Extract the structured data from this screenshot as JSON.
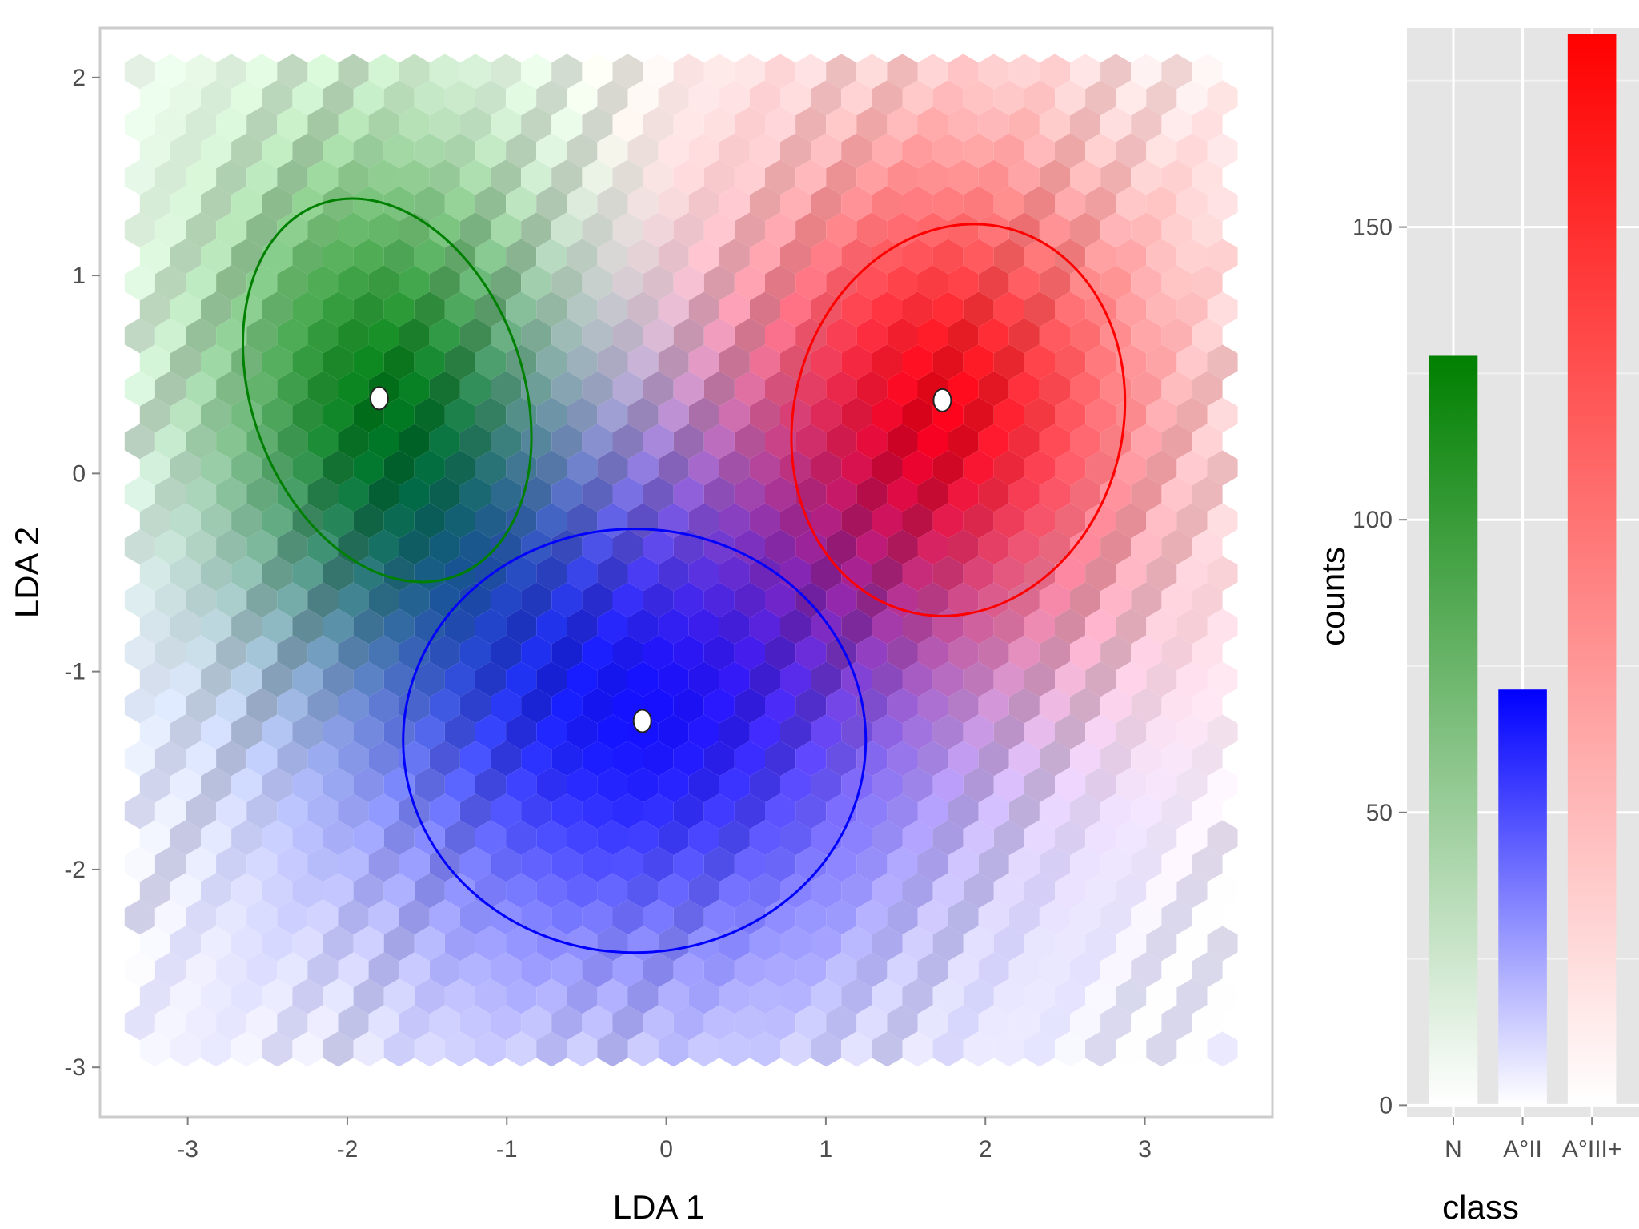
{
  "chart_data": [
    {
      "type": "scatter",
      "subtype": "hexbin-density-with-ellipses",
      "xlabel": "LDA 1",
      "ylabel": "LDA 2",
      "xlim": [
        -3.55,
        3.8
      ],
      "ylim": [
        -3.25,
        2.25
      ],
      "xticks": [
        "-3",
        "-2",
        "-1",
        "0",
        "1",
        "2",
        "3"
      ],
      "yticks": [
        "2",
        "1",
        "0",
        "-1",
        "-2",
        "-3"
      ],
      "grid": false,
      "background": "#ffffff",
      "classes": [
        {
          "label": "N",
          "color": "#008000",
          "centroid": [
            -1.8,
            0.38
          ],
          "ellipse_center": [
            -1.75,
            0.42
          ],
          "ellipse_radii": [
            0.85,
            1.0
          ]
        },
        {
          "label": "A°II",
          "color": "#0000ff",
          "centroid": [
            -0.15,
            -1.25
          ],
          "ellipse_center": [
            -0.2,
            -1.35
          ],
          "ellipse_radii": [
            1.45,
            1.07
          ]
        },
        {
          "label": "A°III+",
          "color": "#ff0000",
          "centroid": [
            1.73,
            0.37
          ],
          "ellipse_center": [
            1.83,
            0.27
          ],
          "ellipse_radii": [
            1.03,
            1.0
          ]
        }
      ]
    },
    {
      "type": "bar",
      "categories": [
        "N",
        "A°II",
        "A°III+"
      ],
      "values": [
        128,
        71,
        183
      ],
      "colors": [
        "#008000",
        "#0000ff",
        "#ff0000"
      ],
      "fill": "vertical gradient from white to class color",
      "xlabel": "class",
      "ylabel": "counts",
      "ylim": [
        -2,
        184
      ],
      "yticks": [
        0,
        50,
        100,
        150
      ],
      "grid": true,
      "background": "#e5e5e5"
    }
  ]
}
